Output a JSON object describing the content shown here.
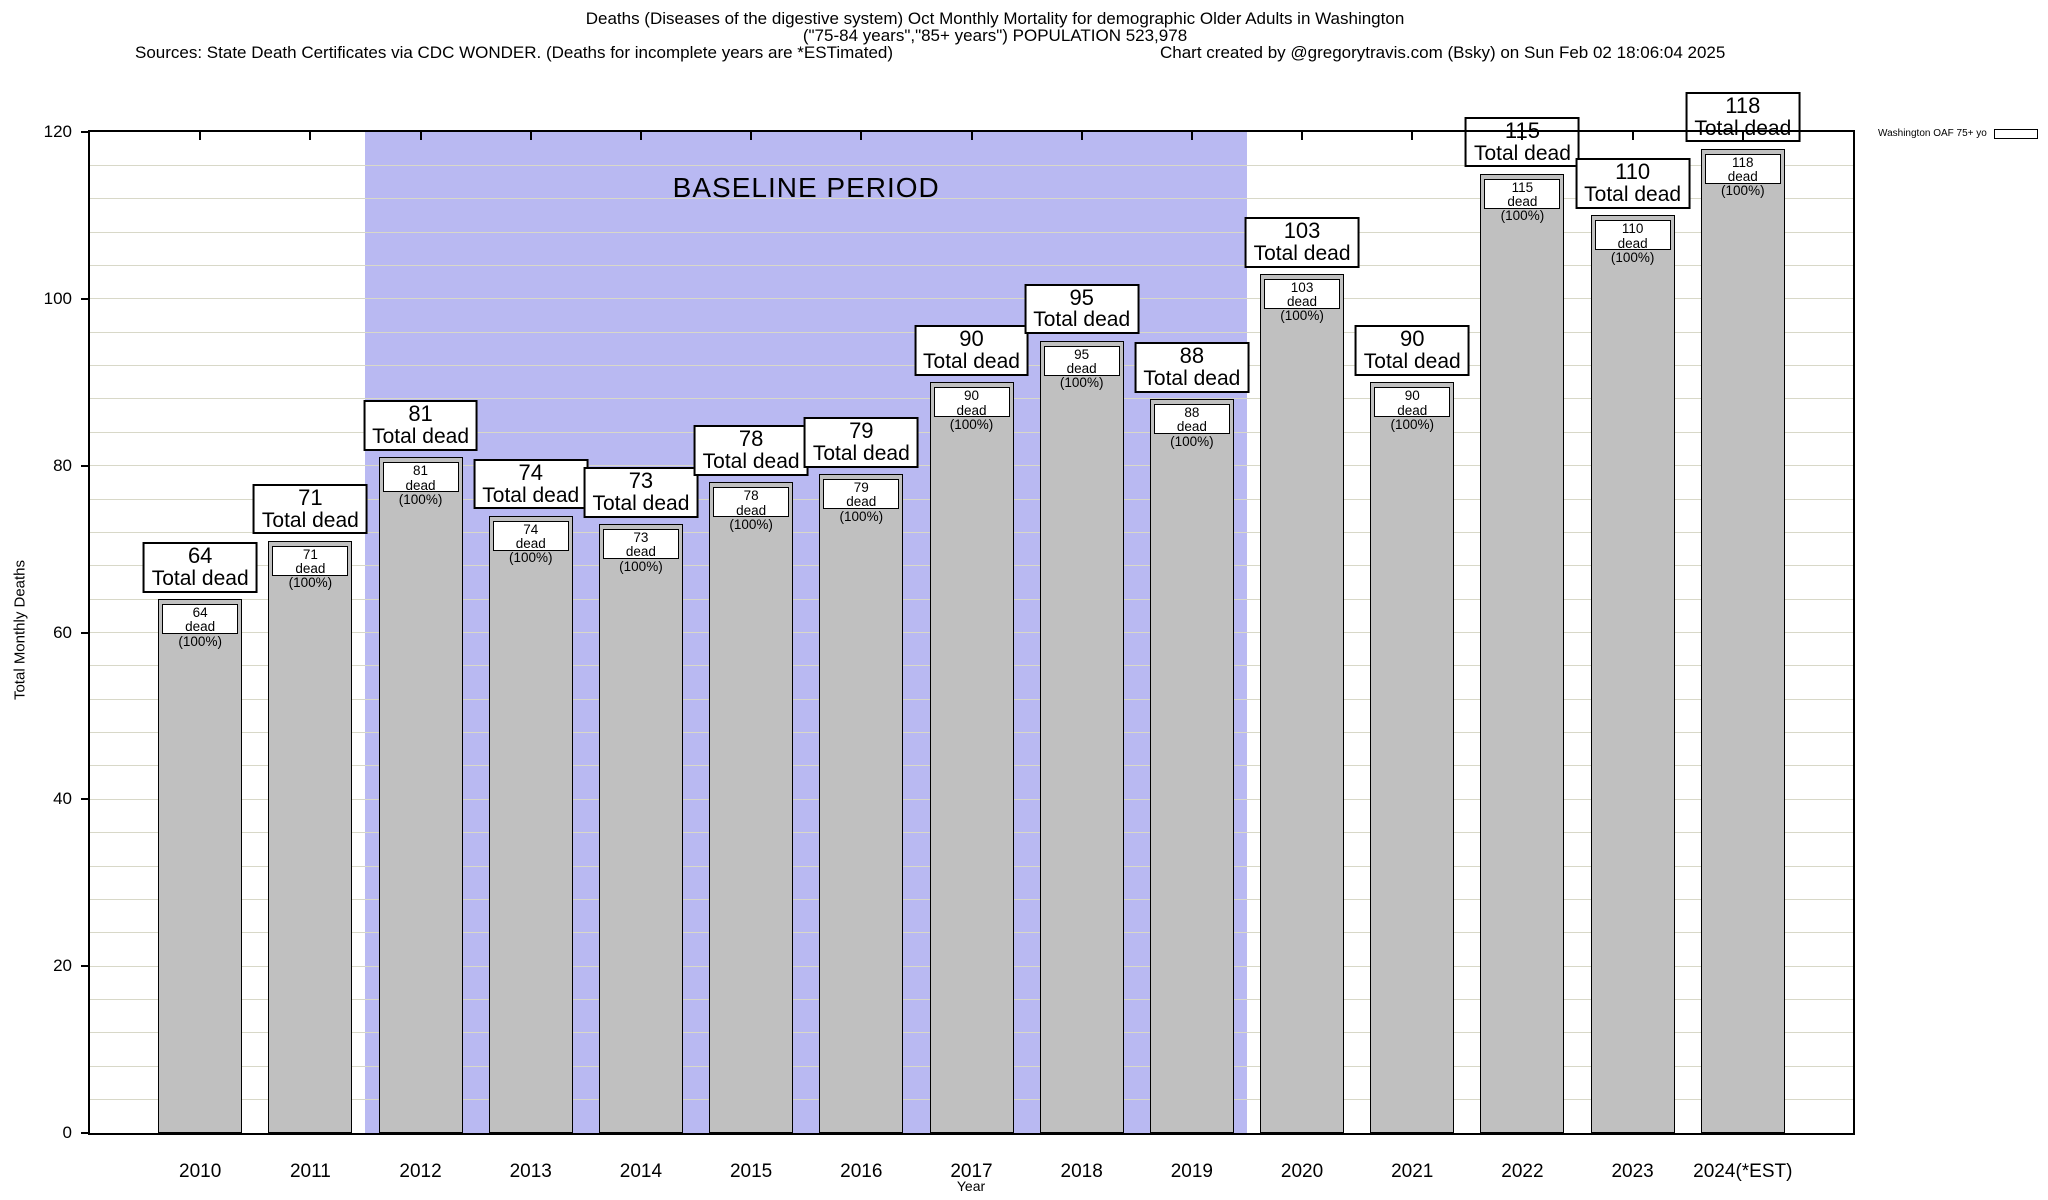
{
  "header": {
    "title_line1": "Deaths (Diseases of the digestive system) Oct Monthly Mortality for demographic Older Adults in Washington",
    "title_line2": "(\"75-84 years\",\"85+ years\") POPULATION 523,978",
    "sources_note": "Sources: State Death Certificates via CDC WONDER. (Deaths for incomplete years are *ESTimated)",
    "credit_note": "Chart created by @gregorytravis.com (Bsky) on Sun Feb 02 18:06:04 2025"
  },
  "legend": {
    "label": "Washington OAF 75+ yo"
  },
  "axes": {
    "x_label": "Year",
    "y_label": "Total Monthly Deaths"
  },
  "chart_data": {
    "type": "bar",
    "title": "Deaths (Diseases of the digestive system) Oct Monthly Mortality for demographic Older Adults in Washington",
    "subtitle": "(\"75-84 years\",\"85+ years\") POPULATION 523,978",
    "categories": [
      "2010",
      "2011",
      "2012",
      "2013",
      "2014",
      "2015",
      "2016",
      "2017",
      "2018",
      "2019",
      "2020",
      "2021",
      "2022",
      "2023",
      "2024(*EST)"
    ],
    "values": [
      64,
      71,
      81,
      74,
      73,
      78,
      79,
      90,
      95,
      88,
      103,
      90,
      115,
      110,
      118
    ],
    "series_name": "Washington OAF 75+ yo",
    "xlabel": "Year",
    "ylabel": "Total Monthly Deaths",
    "ylim": [
      0,
      120
    ],
    "ytick_step": 20,
    "minor_gridline_step": 4,
    "grid": true,
    "legend_position": "top-right",
    "bar_top_label_suffix": "Total dead",
    "bar_inner_label_suffix": "dead (100%)",
    "baseline_band": {
      "label": "BASELINE PERIOD",
      "from_category": "2012",
      "to_category": "2019"
    },
    "colors": {
      "bar_fill": "#c0c0c0",
      "bar_border": "#000000",
      "baseline_band_fill": "#b9b9f2",
      "gridline": "#d8d8c8",
      "label_box_bg": "#ffffff"
    }
  }
}
